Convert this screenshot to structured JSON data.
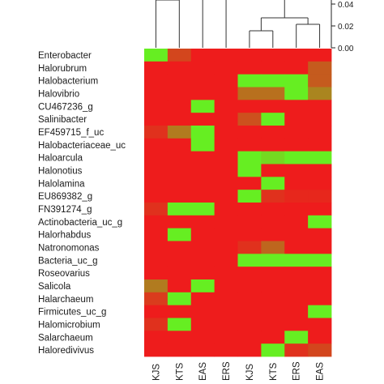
{
  "chart_data": {
    "type": "heatmap",
    "rows": [
      "Enterobacter",
      "Halorubrum",
      "Halobacterium",
      "Halovibrio",
      "CU467236_g",
      "Salinibacter",
      "EF459715_f_uc",
      "Halobacteriaceae_uc",
      "Haloarcula",
      "Halonotius",
      "Halolamina",
      "EU869382_g",
      "FN391274_g",
      "Actinobacteria_uc_g",
      "Halorhabdus",
      "Natronomonas",
      "Bacteria_uc_g",
      "Roseovarius",
      "Salicola",
      "Halarchaeum",
      "Firmicutes_uc_g",
      "Halomicrobium",
      "Salarchaeum",
      "Haloredivivus"
    ],
    "columns": [
      "KJS",
      "KTS",
      "EAS",
      "ERS",
      "KJS",
      "KTS",
      "ERS",
      "EAS"
    ],
    "scale": {
      "min": 0,
      "max": 1,
      "low_color": "#ee1c1c",
      "high_color": "#66ee22"
    },
    "values": [
      [
        1.0,
        0.2,
        0.0,
        0.0,
        0.0,
        0.0,
        0.0,
        0.0
      ],
      [
        0.0,
        0.0,
        0.0,
        0.0,
        0.0,
        0.0,
        0.0,
        0.3
      ],
      [
        0.0,
        0.0,
        0.0,
        0.0,
        1.0,
        1.0,
        1.0,
        0.3
      ],
      [
        0.0,
        0.0,
        0.0,
        0.0,
        0.4,
        0.4,
        1.0,
        0.5
      ],
      [
        0.0,
        0.0,
        1.0,
        0.0,
        0.0,
        0.0,
        0.0,
        0.0
      ],
      [
        0.0,
        0.0,
        0.0,
        0.0,
        0.25,
        1.0,
        0.0,
        0.0
      ],
      [
        0.1,
        0.45,
        1.0,
        0.0,
        0.0,
        0.0,
        0.0,
        0.0
      ],
      [
        0.0,
        0.0,
        1.0,
        0.0,
        0.0,
        0.0,
        0.0,
        0.0
      ],
      [
        0.0,
        0.0,
        0.0,
        0.0,
        1.0,
        0.9,
        1.0,
        1.0
      ],
      [
        0.0,
        0.0,
        0.0,
        0.0,
        1.0,
        0.0,
        0.0,
        0.0
      ],
      [
        0.0,
        0.0,
        0.0,
        0.0,
        0.0,
        1.0,
        0.0,
        0.0
      ],
      [
        0.0,
        0.0,
        0.0,
        0.0,
        1.0,
        0.1,
        0.05,
        0.05
      ],
      [
        0.1,
        1.0,
        1.0,
        0.0,
        0.0,
        0.0,
        0.0,
        0.0
      ],
      [
        0.0,
        0.0,
        0.0,
        0.0,
        0.0,
        0.0,
        0.0,
        1.0
      ],
      [
        0.0,
        1.0,
        0.0,
        0.0,
        0.0,
        0.0,
        0.0,
        0.0
      ],
      [
        0.0,
        0.0,
        0.0,
        0.0,
        0.1,
        0.35,
        0.0,
        0.0
      ],
      [
        0.0,
        0.0,
        0.0,
        0.0,
        1.0,
        1.0,
        1.0,
        1.0
      ],
      [
        0.0,
        0.0,
        0.0,
        0.0,
        0.0,
        0.0,
        0.0,
        0.0
      ],
      [
        0.45,
        0.0,
        1.0,
        0.0,
        0.0,
        0.0,
        0.0,
        0.0
      ],
      [
        0.15,
        1.0,
        0.0,
        0.0,
        0.0,
        0.0,
        0.0,
        0.0
      ],
      [
        0.0,
        0.0,
        0.0,
        0.0,
        0.0,
        0.0,
        0.0,
        1.0
      ],
      [
        0.1,
        1.0,
        0.0,
        0.0,
        0.0,
        0.0,
        0.0,
        0.0
      ],
      [
        0.0,
        0.0,
        0.0,
        0.0,
        0.0,
        0.0,
        1.0,
        0.0
      ],
      [
        0.0,
        0.0,
        0.0,
        0.0,
        0.0,
        1.0,
        0.1,
        0.2
      ]
    ],
    "dendrogram_axis": {
      "ticks": [
        "0.04",
        "0.02",
        "0.00"
      ]
    }
  }
}
